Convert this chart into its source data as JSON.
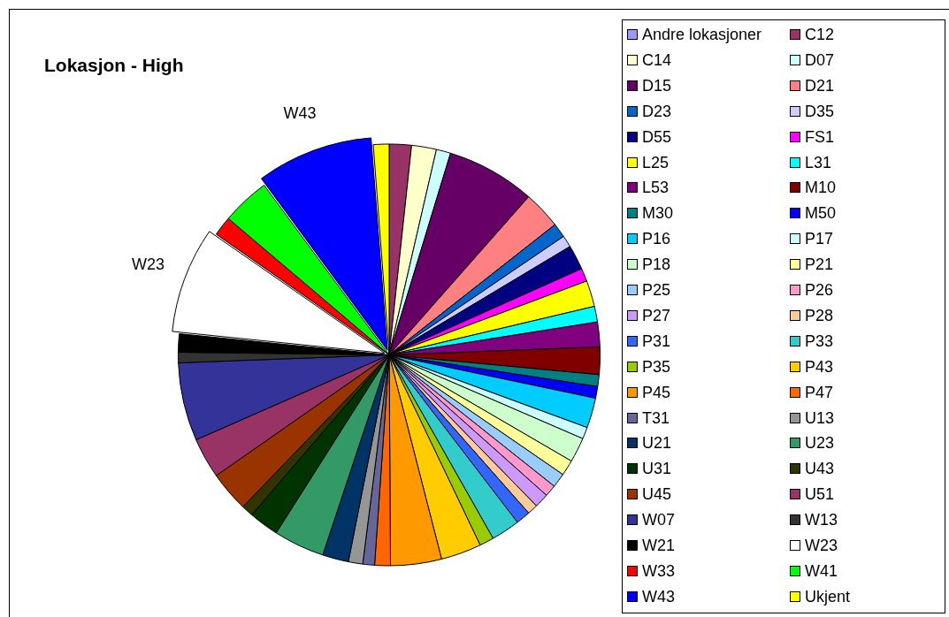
{
  "chart_data": {
    "type": "pie",
    "title": "Lokasjon - High",
    "categories": [
      "Andre lokasjoner",
      "C12",
      "C14",
      "D07",
      "D15",
      "D21",
      "D23",
      "D35",
      "D55",
      "FS1",
      "L25",
      "L31",
      "L53",
      "M10",
      "M30",
      "M50",
      "P16",
      "P17",
      "P18",
      "P21",
      "P25",
      "P26",
      "P27",
      "P28",
      "P31",
      "P33",
      "P35",
      "P43",
      "P45",
      "P47",
      "T31",
      "U13",
      "U21",
      "U23",
      "U31",
      "U43",
      "U45",
      "U51",
      "W07",
      "W13",
      "W21",
      "W23",
      "W33",
      "W41",
      "W43",
      "Ukjent"
    ],
    "values": [
      0,
      1.7,
      1.9,
      1.1,
      6.8,
      2.9,
      1.1,
      0.9,
      1.9,
      1.0,
      2.0,
      1.2,
      1.9,
      2.1,
      0.9,
      0.9,
      2.3,
      0.9,
      1.9,
      1.2,
      1.1,
      0.9,
      1.1,
      0.8,
      1.1,
      2.2,
      1.1,
      3.1,
      3.9,
      1.2,
      0.9,
      1.1,
      2.0,
      3.9,
      2.3,
      0.9,
      3.1,
      3.1,
      6.0,
      0.8,
      1.4,
      8.1,
      1.5,
      3.7,
      8.9,
      1.2
    ],
    "colors": [
      "#9999ff",
      "#993366",
      "#ffffcc",
      "#ccffff",
      "#660066",
      "#ff8080",
      "#0066cc",
      "#ccccff",
      "#000080",
      "#ff00ff",
      "#ffff00",
      "#00ffff",
      "#800080",
      "#800000",
      "#008080",
      "#0000ff",
      "#00ccff",
      "#ccffff",
      "#ccffcc",
      "#ffff99",
      "#99ccff",
      "#ff99cc",
      "#cc99ff",
      "#ffcc99",
      "#3366ff",
      "#33cccc",
      "#99cc00",
      "#ffcc00",
      "#ff9900",
      "#ff6600",
      "#666699",
      "#969696",
      "#003366",
      "#339966",
      "#003300",
      "#333300",
      "#993300",
      "#993366",
      "#333399",
      "#333333",
      "#000000",
      "#ffffff",
      "#ff0000",
      "#00ff00",
      "#0000ff",
      "#ffff00"
    ],
    "legend": "right",
    "annotations": [
      {
        "text": "W43",
        "x": "W43"
      },
      {
        "text": "W23",
        "x": "W23"
      }
    ]
  }
}
